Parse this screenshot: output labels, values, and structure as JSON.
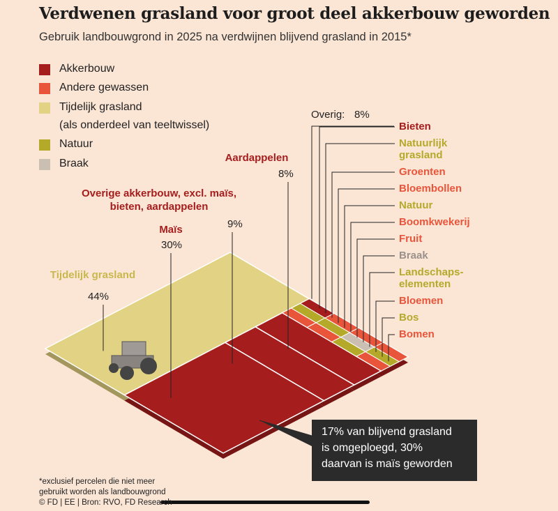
{
  "chart_data": {
    "type": "treemap",
    "title": "Verdwenen grasland voor groot deel akkerbouw geworden",
    "subtitle": "Gebruik landbouwgrond in 2025 na verdwijnen blijvend grasland in 2015*",
    "legend": [
      {
        "name": "Akkerbouw",
        "color": "#a51d1d"
      },
      {
        "name": "Andere gewassen",
        "color": "#e8553a"
      },
      {
        "name": "Tijdelijk grasland",
        "note": "(als onderdeel van teeltwissel)",
        "color": "#e2d283"
      },
      {
        "name": "Natuur",
        "color": "#b5a92a"
      },
      {
        "name": "Braak",
        "color": "#cbbfb4"
      }
    ],
    "categories": [
      "Tijdelijk grasland",
      "Maïs",
      "Overige akkerbouw, excl. maïs, bieten, aardappelen",
      "Aardappelen",
      "Overig:"
    ],
    "values": [
      44,
      30,
      9,
      8,
      8
    ],
    "value_labels": [
      "44%",
      "30%",
      "9%",
      "8%",
      "8%"
    ],
    "category_groups": [
      2,
      0,
      0,
      0,
      null
    ],
    "other_items": [
      {
        "name": "Bieten",
        "group": 0
      },
      {
        "name": "Natuurlijk grasland",
        "group": 3
      },
      {
        "name": "Groenten",
        "group": 1
      },
      {
        "name": "Bloembollen",
        "group": 1
      },
      {
        "name": "Natuur",
        "group": 3
      },
      {
        "name": "Boomkwekerij",
        "group": 1
      },
      {
        "name": "Fruit",
        "group": 1
      },
      {
        "name": "Braak",
        "group": 4
      },
      {
        "name": "Landschaps­elementen",
        "group": 3
      },
      {
        "name": "Bloemen",
        "group": 1
      },
      {
        "name": "Bos",
        "group": 3
      },
      {
        "name": "Bomen",
        "group": 1
      }
    ],
    "callout": [
      "17% van blijvend grasland",
      "is omgeploegd, 30%",
      "daarvan is maïs geworden"
    ],
    "footnote": [
      "*exclusief percelen die niet meer",
      "gebruikt worden als landbouwgrond",
      "© FD | EE | Bron: RVO, FD Research"
    ]
  }
}
